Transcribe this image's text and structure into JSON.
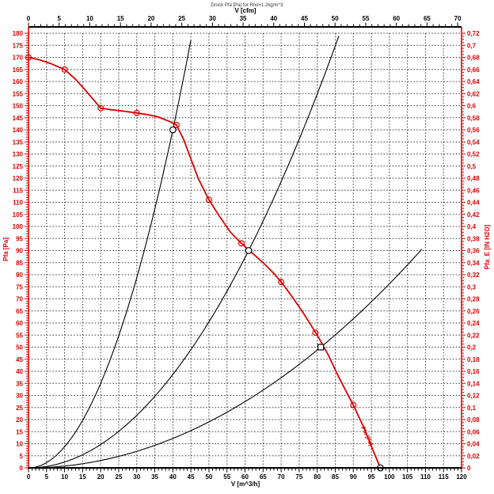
{
  "window": {
    "title": "Druck Pfa [Pa] for Rho=1.2kg/m^3"
  },
  "colors": {
    "accent_red": "#dd0000",
    "curve_black": "#000000",
    "grid_gray": "#3f3f3f",
    "background": "#ffffff",
    "marker_fill": "#ffffff"
  },
  "chart_data": {
    "type": "line",
    "title": "Druck Pfa [Pa] for Rho=1.2kg/m^3",
    "grid": "on",
    "legend": "none",
    "axes": {
      "bottom": {
        "label": "V [m^3/h]",
        "min": 0,
        "max": 120,
        "major_step": 5,
        "minor_step": 1
      },
      "top": {
        "label": "V [cfm]",
        "min": 0,
        "max": 70,
        "major_step": 5,
        "minor_step": 1,
        "m3h_per_cfm": 1.699
      },
      "left": {
        "label": "Pfa [Pa]",
        "min": 0,
        "max": 180,
        "major_step": 5,
        "minor_step": 1
      },
      "right": {
        "label": "Pfa_E [IN H2O]",
        "min": 0,
        "max": 0.72,
        "major_step": 0.02,
        "minor_step": 0.005,
        "decimal_separator": ","
      }
    },
    "fan_curve": {
      "name": "fan-pressure-curve",
      "color": "#dd0000",
      "inline_label": "Pfa [Pa]",
      "points": [
        [
          0,
          170
        ],
        [
          3,
          169
        ],
        [
          6,
          167.5
        ],
        [
          10,
          165
        ],
        [
          13,
          161
        ],
        [
          16,
          156
        ],
        [
          20,
          149
        ],
        [
          23,
          148.3
        ],
        [
          26,
          147.8
        ],
        [
          30,
          147
        ],
        [
          33,
          146.3
        ],
        [
          36,
          145.3
        ],
        [
          39,
          143.5
        ],
        [
          41,
          142
        ],
        [
          43,
          136
        ],
        [
          45,
          128
        ],
        [
          47,
          120
        ],
        [
          50,
          111
        ],
        [
          53,
          104
        ],
        [
          56,
          97.5
        ],
        [
          59,
          93
        ],
        [
          62,
          89
        ],
        [
          65,
          85
        ],
        [
          68,
          80.5
        ],
        [
          70,
          77
        ],
        [
          73,
          71
        ],
        [
          76,
          64.5
        ],
        [
          80,
          55
        ],
        [
          83,
          47
        ],
        [
          86,
          37.5
        ],
        [
          90,
          26
        ],
        [
          93,
          16.5
        ],
        [
          95,
          9
        ],
        [
          97.5,
          0
        ]
      ],
      "markers": [
        [
          0,
          170
        ],
        [
          10,
          165
        ],
        [
          20,
          149
        ],
        [
          30,
          147
        ],
        [
          41,
          142
        ],
        [
          50,
          111
        ],
        [
          59,
          93
        ],
        [
          70,
          77
        ],
        [
          79.5,
          56
        ],
        [
          90,
          26
        ]
      ]
    },
    "system_curves": [
      {
        "name": "system-curve-1",
        "passes_through": {
          "v": 40,
          "p": 140
        },
        "v_end": 45.4
      },
      {
        "name": "system-curve-2",
        "passes_through": {
          "v": 61,
          "p": 90
        },
        "v_end": 86.3
      },
      {
        "name": "system-curve-3",
        "passes_through": {
          "v": 81,
          "p": 50
        },
        "v_end": 109
      }
    ],
    "operating_points": [
      {
        "v": 40,
        "p": 140,
        "shape": "circle"
      },
      {
        "v": 61,
        "p": 90,
        "shape": "circle"
      },
      {
        "v": 81,
        "p": 50,
        "shape": "square"
      },
      {
        "v": 97.5,
        "p": 0,
        "shape": "circle"
      }
    ]
  }
}
